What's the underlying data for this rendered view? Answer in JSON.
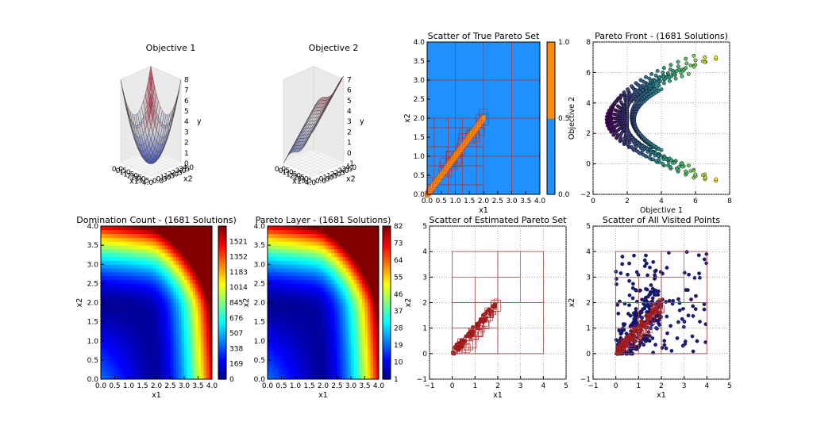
{
  "chart_data": [
    {
      "id": "obj1",
      "type": "surface3d",
      "title": "Objective 1",
      "xlabel": "x1",
      "ylabel": "x2",
      "zlabel": "y",
      "x_ticks": [
        "0.0",
        "0.5",
        "1.0",
        "1.5",
        "2.0",
        "2.5",
        "3.0",
        "3.5",
        "4.0"
      ],
      "y_ticks": [
        "0.0",
        "0.5",
        "1.0",
        "1.5",
        "2.0",
        "2.5",
        "3.0",
        "3.5",
        "4.0"
      ],
      "z_ticks": [
        "0",
        "1",
        "2",
        "3",
        "4",
        "5",
        "6",
        "7",
        "8"
      ],
      "xlim": [
        0,
        4
      ],
      "ylim": [
        0,
        4
      ],
      "zlim": [
        0,
        8
      ],
      "colormap": "coolwarm"
    },
    {
      "id": "obj2",
      "type": "surface3d",
      "title": "Objective 2",
      "xlabel": "x1",
      "ylabel": "x2",
      "zlabel": "y",
      "x_ticks": [
        "0.0",
        "0.5",
        "1.0",
        "1.5",
        "2.0",
        "2.5",
        "3.0",
        "3.5",
        "4.0"
      ],
      "y_ticks": [
        "0.0",
        "0.5",
        "1.0",
        "1.5",
        "2.0",
        "2.5",
        "3.0",
        "3.5",
        "4.0"
      ],
      "z_ticks": [
        "-1",
        "0",
        "1",
        "2",
        "3",
        "4",
        "5",
        "6",
        "7"
      ],
      "xlim": [
        0,
        4
      ],
      "ylim": [
        0,
        4
      ],
      "zlim": [
        -1,
        7
      ],
      "colormap": "coolwarm"
    },
    {
      "id": "truepareto",
      "type": "heatmap",
      "title": "Scatter of True Pareto Set",
      "xlabel": "x1",
      "ylabel": "x2",
      "xlim": [
        0,
        4
      ],
      "ylim": [
        0,
        4
      ],
      "x_ticks": [
        "0.0",
        "0.5",
        "1.0",
        "1.5",
        "2.0",
        "2.5",
        "3.0",
        "3.5",
        "4.0"
      ],
      "y_ticks": [
        "0.0",
        "0.5",
        "1.0",
        "1.5",
        "2.0",
        "2.5",
        "3.0",
        "3.5",
        "4.0"
      ],
      "colorbar_ticks": [
        "0.0",
        "0.5",
        "1.0"
      ],
      "colors": {
        "low": "#1e90ff",
        "high": "#ff8c00",
        "grid": "#b03030"
      },
      "pareto_set_segment": {
        "from": [
          0,
          0
        ],
        "to": [
          2,
          2
        ]
      }
    },
    {
      "id": "paretofront",
      "type": "scatter",
      "title": "Pareto Front - (1681 Solutions)",
      "xlabel": "Objective 1",
      "ylabel": "Objective 2",
      "xlim": [
        -1,
        9
      ],
      "ylim": [
        -2,
        8
      ],
      "x_ticks": [
        "0",
        "2",
        "4",
        "6",
        "8"
      ],
      "y_ticks": [
        "−2",
        "0",
        "2",
        "4",
        "6",
        "8"
      ],
      "grid": true,
      "colormap": "viridis",
      "curves": [
        {
          "offset": 0,
          "y_center": 3,
          "y_half_range": 4,
          "x_max": 8
        },
        {
          "offset": 1,
          "y_center": 3,
          "y_half_range": 3,
          "x_max": 6
        },
        {
          "offset": 2,
          "y_center": 3,
          "y_half_range": 2,
          "x_max": 4
        }
      ]
    },
    {
      "id": "domcount",
      "type": "heatmap",
      "title": "Domination Count - (1681 Solutions)",
      "xlabel": "x1",
      "ylabel": "x2",
      "xlim": [
        0,
        4
      ],
      "ylim": [
        0,
        4
      ],
      "x_ticks": [
        "0.0",
        "0.5",
        "1.0",
        "1.5",
        "2.0",
        "2.5",
        "3.0",
        "3.5",
        "4.0"
      ],
      "y_ticks": [
        "0.0",
        "0.5",
        "1.0",
        "1.5",
        "2.0",
        "2.5",
        "3.0",
        "3.5",
        "4.0"
      ],
      "colorbar_ticks": [
        "0",
        "169",
        "338",
        "507",
        "676",
        "845",
        "1014",
        "1183",
        "1352",
        "1521"
      ],
      "vmin": 0,
      "vmax": 1690,
      "colormap": "jet"
    },
    {
      "id": "paretolayer",
      "type": "heatmap",
      "title": "Pareto Layer - (1681 Solutions)",
      "xlabel": "x1",
      "ylabel": "x2",
      "xlim": [
        0,
        4
      ],
      "ylim": [
        0,
        4
      ],
      "x_ticks": [
        "0.0",
        "0.5",
        "1.0",
        "1.5",
        "2.0",
        "2.5",
        "3.0",
        "3.5",
        "4.0"
      ],
      "y_ticks": [
        "0.0",
        "0.5",
        "1.0",
        "1.5",
        "2.0",
        "2.5",
        "3.0",
        "3.5",
        "4.0"
      ],
      "colorbar_ticks": [
        "1",
        "10",
        "19",
        "28",
        "37",
        "46",
        "55",
        "64",
        "73",
        "82"
      ],
      "vmin": 1,
      "vmax": 82,
      "colormap": "jet"
    },
    {
      "id": "estpareto",
      "type": "scatter",
      "title": "Scatter of Estimated Pareto Set",
      "xlabel": "x1",
      "ylabel": "x2",
      "xlim": [
        -1,
        5
      ],
      "ylim": [
        -1,
        5
      ],
      "x_ticks": [
        "−1",
        "0",
        "1",
        "2",
        "3",
        "4",
        "5"
      ],
      "y_ticks": [
        "−1",
        "0",
        "1",
        "2",
        "3",
        "4",
        "5"
      ],
      "grid": true,
      "colors": {
        "boxes": "#b03030",
        "points": "#b02020"
      },
      "bounds": [
        0,
        4
      ]
    },
    {
      "id": "visited",
      "type": "scatter",
      "title": "Scatter of All Visited Points",
      "xlabel": "x1",
      "ylabel": "x2",
      "xlim": [
        -1,
        5
      ],
      "ylim": [
        -1,
        5
      ],
      "x_ticks": [
        "−1",
        "0",
        "1",
        "2",
        "3",
        "4",
        "5"
      ],
      "y_ticks": [
        "−1",
        "0",
        "1",
        "2",
        "3",
        "4",
        "5"
      ],
      "grid": true,
      "colors": {
        "boxes": "#b03030",
        "points": "#1a1a80",
        "set_points": "#b02020"
      },
      "bounds": [
        0,
        4
      ]
    }
  ]
}
